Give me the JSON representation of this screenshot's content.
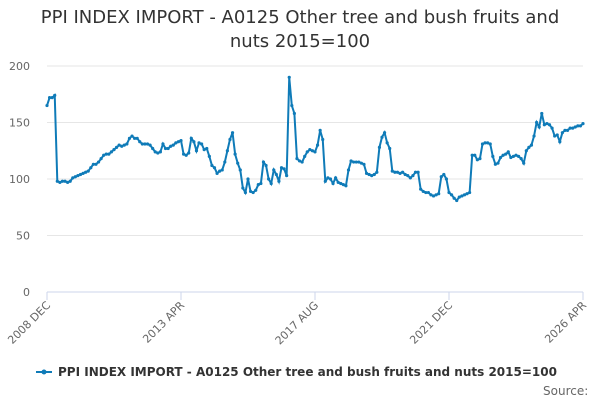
{
  "chart_data": {
    "type": "line",
    "title": "PPI INDEX IMPORT - A0125 Other tree and bush fruits and nuts 2015=100",
    "source": "Source:",
    "categories": [
      "2008 DEC",
      null,
      null,
      null,
      null,
      null,
      null,
      null,
      null,
      null,
      null,
      null,
      null,
      null,
      null,
      null,
      null,
      null,
      null,
      null,
      null,
      null,
      null,
      null,
      null,
      null,
      null,
      null,
      null,
      null,
      null,
      null,
      null,
      null,
      null,
      null,
      null,
      null,
      null,
      null,
      null,
      null,
      null,
      null,
      null,
      null,
      null,
      null,
      null,
      null,
      null,
      null,
      "2013 APR",
      null,
      null,
      null,
      null,
      null,
      null,
      null,
      null,
      null,
      null,
      null,
      null,
      null,
      null,
      null,
      null,
      null,
      null,
      null,
      null,
      null,
      null,
      null,
      null,
      null,
      null,
      null,
      null,
      null,
      null,
      null,
      null,
      null,
      null,
      null,
      null,
      null,
      null,
      null,
      null,
      null,
      null,
      null,
      null,
      null,
      null,
      null,
      null,
      null,
      null,
      null,
      "2017 AUG",
      null,
      null,
      null,
      null,
      null,
      null,
      null,
      null,
      null,
      null,
      null,
      null,
      null,
      null,
      null,
      null,
      null,
      null,
      null,
      null,
      null,
      null,
      null,
      null,
      null,
      null,
      null,
      null,
      null,
      null,
      null,
      null,
      null,
      null,
      null,
      null,
      null,
      null,
      null,
      null,
      null,
      null,
      null,
      null,
      null,
      null,
      null,
      null,
      null,
      null,
      null,
      "2021 DEC",
      null,
      null,
      null,
      null,
      null,
      null,
      null,
      null,
      null,
      null,
      null,
      null,
      null,
      null,
      null,
      null,
      null,
      null,
      null,
      null,
      null,
      null,
      null,
      null,
      null,
      null,
      null,
      null,
      null,
      null,
      null,
      null,
      null,
      null,
      null,
      null,
      null,
      null,
      null,
      null,
      null,
      null,
      null,
      null,
      null,
      null,
      null,
      null,
      null,
      null,
      null,
      "2026 APR"
    ],
    "series": [
      {
        "name": "PPI INDEX IMPORT - A0125 Other tree and bush fruits and nuts 2015=100",
        "color": "#0f7bb8",
        "values": [
          165,
          172,
          172,
          174,
          98,
          97,
          98,
          98,
          97,
          98,
          101,
          102,
          103,
          104,
          105,
          106,
          107,
          110,
          113,
          113,
          115,
          118,
          121,
          122,
          122,
          124,
          126,
          128,
          130,
          129,
          130,
          131,
          136,
          138,
          136,
          136,
          133,
          131,
          131,
          131,
          130,
          127,
          124,
          123,
          124,
          131,
          127,
          127,
          129,
          130,
          132,
          133,
          134,
          122,
          121,
          123,
          136,
          133,
          125,
          132,
          131,
          126,
          127,
          120,
          112,
          110,
          105,
          107,
          108,
          115,
          125,
          135,
          141,
          122,
          114,
          108,
          92,
          88,
          100,
          89,
          88,
          90,
          95,
          96,
          115,
          112,
          100,
          96,
          108,
          104,
          98,
          110,
          109,
          103,
          190,
          165,
          158,
          118,
          116,
          115,
          120,
          124,
          126,
          125,
          124,
          130,
          143,
          135,
          98,
          101,
          100,
          96,
          101,
          97,
          96,
          95,
          94,
          108,
          116,
          115,
          115,
          115,
          114,
          113,
          105,
          104,
          103,
          104,
          106,
          128,
          137,
          141,
          132,
          127,
          107,
          106,
          106,
          105,
          106,
          104,
          103,
          101,
          103,
          106,
          106,
          91,
          89,
          88,
          88,
          86,
          85,
          86,
          87,
          102,
          104,
          100,
          88,
          86,
          83,
          81,
          84,
          85,
          86,
          87,
          88,
          121,
          121,
          117,
          118,
          131,
          132,
          132,
          131,
          120,
          113,
          114,
          119,
          121,
          122,
          124,
          119,
          120,
          121,
          120,
          118,
          114,
          125,
          128,
          130,
          138,
          150,
          146,
          158,
          148,
          149,
          148,
          145,
          138,
          139,
          133,
          141,
          143,
          143,
          145,
          145,
          146,
          147,
          147,
          149
        ]
      }
    ],
    "ylim": [
      0,
      200
    ],
    "yticks": [
      0,
      50,
      100,
      150,
      200
    ],
    "grid": true
  }
}
